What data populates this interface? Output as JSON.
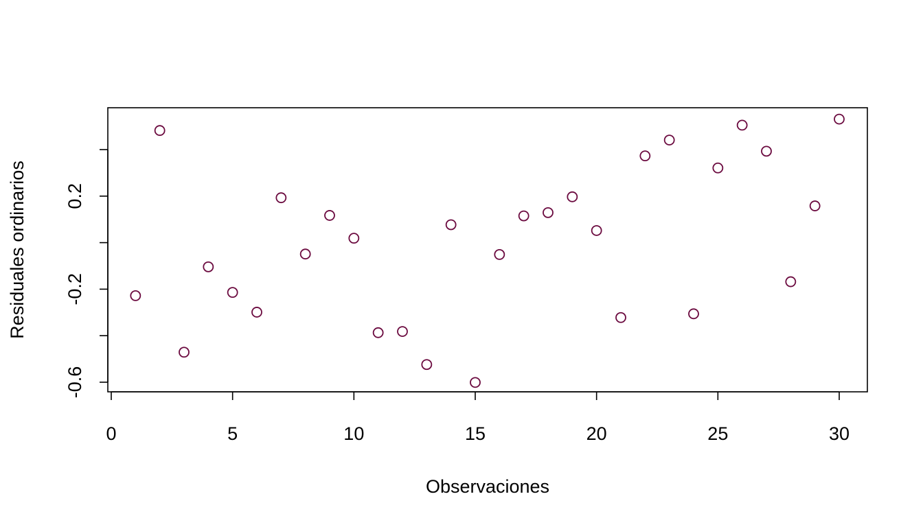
{
  "chart_data": {
    "type": "scatter",
    "title": "",
    "xlabel": "Observaciones",
    "ylabel": "Residuales ordinarios",
    "xlim": [
      0,
      30
    ],
    "ylim": [
      -0.6,
      0.6
    ],
    "x_ticks": [
      0,
      5,
      10,
      15,
      20,
      25,
      30
    ],
    "x_tick_labels": [
      "0",
      "5",
      "10",
      "15",
      "20",
      "25",
      "30"
    ],
    "y_ticks": [
      -0.6,
      -0.4,
      -0.2,
      0.0,
      0.2,
      0.4
    ],
    "y_tick_labels": [
      "-0.6",
      "",
      "-0.2",
      "",
      "0.2",
      ""
    ],
    "grid": false,
    "legend": "none",
    "marker": "open-circle",
    "point_color": "#6B0A3F",
    "x": [
      1,
      2,
      3,
      4,
      5,
      6,
      7,
      8,
      9,
      10,
      11,
      12,
      13,
      14,
      15,
      16,
      17,
      18,
      19,
      20,
      21,
      22,
      23,
      24,
      25,
      26,
      27,
      28,
      29,
      30
    ],
    "y": [
      -0.228,
      0.482,
      -0.471,
      -0.104,
      -0.214,
      -0.299,
      0.193,
      -0.049,
      0.117,
      0.019,
      -0.387,
      -0.382,
      -0.524,
      0.077,
      -0.601,
      -0.051,
      0.115,
      0.129,
      0.197,
      0.052,
      -0.322,
      0.373,
      0.441,
      -0.306,
      0.321,
      0.505,
      0.393,
      -0.168,
      0.158,
      0.531
    ]
  }
}
